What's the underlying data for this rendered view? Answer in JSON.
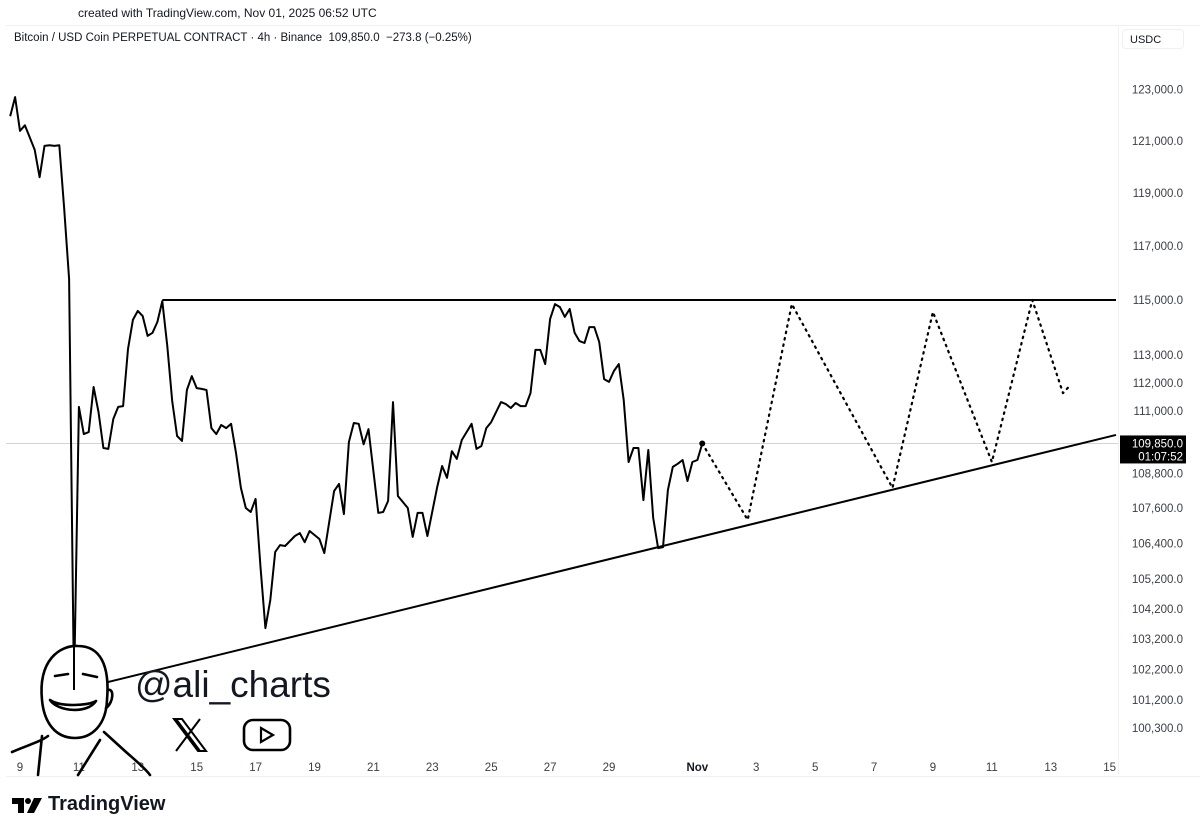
{
  "caption": "created with TradingView.com, Nov 01, 2025 06:52 UTC",
  "header": {
    "symbol": "Bitcoin / USD Coin PERPETUAL CONTRACT · 4h · Binance",
    "price": "109,850.0",
    "change": "−273.8 (−0.25%)"
  },
  "currency_label": "USDC",
  "last_price_label": {
    "price": "109,850.0",
    "countdown": "01:07:52"
  },
  "watermark": {
    "handle": "@ali_charts",
    "icons": [
      "x-logo-icon",
      "youtube-icon"
    ]
  },
  "brand": "TradingView",
  "colors": {
    "line": "#000000",
    "grid_line": "#d1d4dc",
    "label_bg": "#000000"
  },
  "chart_data": {
    "type": "line",
    "title": "",
    "y_scale": "log",
    "ylim": [
      99800,
      126000
    ],
    "grid": false,
    "y_ticks": [
      123000,
      121000,
      119000,
      117000,
      115000,
      113000,
      112000,
      111000,
      108800,
      107600,
      106400,
      105200,
      104200,
      103200,
      102200,
      101200,
      100300
    ],
    "y_tick_labels": [
      "123,000.0",
      "121,000.0",
      "119,000.0",
      "117,000.0",
      "115,000.0",
      "113,000.0",
      "112,000.0",
      "111,000.0",
      "108,800.0",
      "107,600.0",
      "106,400.0",
      "105,200.0",
      "104,200.0",
      "103,200.0",
      "102,200.0",
      "101,200.0",
      "100,300.0"
    ],
    "x_range": [
      "2025-10-08 14:00",
      "2025-11-15 06:00"
    ],
    "x_ticks": [
      {
        "date": "2025-10-09",
        "label": "9"
      },
      {
        "date": "2025-10-11",
        "label": "11"
      },
      {
        "date": "2025-10-13",
        "label": "13"
      },
      {
        "date": "2025-10-15",
        "label": "15"
      },
      {
        "date": "2025-10-17",
        "label": "17"
      },
      {
        "date": "2025-10-19",
        "label": "19"
      },
      {
        "date": "2025-10-21",
        "label": "21"
      },
      {
        "date": "2025-10-23",
        "label": "23"
      },
      {
        "date": "2025-10-25",
        "label": "25"
      },
      {
        "date": "2025-10-27",
        "label": "27"
      },
      {
        "date": "2025-10-29",
        "label": "29"
      },
      {
        "date": "2025-11-01",
        "label": "Nov",
        "bold": true
      },
      {
        "date": "2025-11-03",
        "label": "3"
      },
      {
        "date": "2025-11-05",
        "label": "5"
      },
      {
        "date": "2025-11-07",
        "label": "7"
      },
      {
        "date": "2025-11-09",
        "label": "9"
      },
      {
        "date": "2025-11-11",
        "label": "11"
      },
      {
        "date": "2025-11-13",
        "label": "13"
      },
      {
        "date": "2025-11-15",
        "label": "15"
      }
    ],
    "last_price": 109850,
    "series": [
      {
        "style": "solid",
        "points": [
          [
            "2025-10-08 16:00",
            121950
          ],
          [
            "2025-10-08 20:00",
            122700
          ],
          [
            "2025-10-09 00:00",
            121380
          ],
          [
            "2025-10-09 04:00",
            121600
          ],
          [
            "2025-10-09 12:00",
            120650
          ],
          [
            "2025-10-09 16:00",
            119600
          ],
          [
            "2025-10-09 20:00",
            120800
          ],
          [
            "2025-10-10 00:00",
            120830
          ],
          [
            "2025-10-10 04:00",
            120800
          ],
          [
            "2025-10-10 08:00",
            120830
          ],
          [
            "2025-10-10 12:00",
            118400
          ],
          [
            "2025-10-10 16:00",
            115770
          ],
          [
            "2025-10-10 20:00",
            101530
          ],
          [
            "2025-10-11 00:00",
            111140
          ],
          [
            "2025-10-11 04:00",
            110180
          ],
          [
            "2025-10-11 08:00",
            110250
          ],
          [
            "2025-10-11 12:00",
            111850
          ],
          [
            "2025-10-11 16:00",
            110960
          ],
          [
            "2025-10-11 20:00",
            109690
          ],
          [
            "2025-10-12 00:00",
            109660
          ],
          [
            "2025-10-12 04:00",
            110710
          ],
          [
            "2025-10-12 08:00",
            111140
          ],
          [
            "2025-10-12 12:00",
            111170
          ],
          [
            "2025-10-12 16:00",
            113210
          ],
          [
            "2025-10-12 20:00",
            114270
          ],
          [
            "2025-10-13 00:00",
            114600
          ],
          [
            "2025-10-13 04:00",
            114410
          ],
          [
            "2025-10-13 08:00",
            113690
          ],
          [
            "2025-10-13 12:00",
            113800
          ],
          [
            "2025-10-13 16:00",
            114200
          ],
          [
            "2025-10-13 20:00",
            114960
          ],
          [
            "2025-10-14 00:00",
            113320
          ],
          [
            "2025-10-14 04:00",
            111350
          ],
          [
            "2025-10-14 08:00",
            110110
          ],
          [
            "2025-10-14 12:00",
            109940
          ],
          [
            "2025-10-14 16:00",
            111740
          ],
          [
            "2025-10-14 20:00",
            112240
          ],
          [
            "2025-10-15 00:00",
            111810
          ],
          [
            "2025-10-15 04:00",
            111780
          ],
          [
            "2025-10-15 08:00",
            111740
          ],
          [
            "2025-10-15 12:00",
            110390
          ],
          [
            "2025-10-15 16:00",
            110180
          ],
          [
            "2025-10-15 20:00",
            110500
          ],
          [
            "2025-10-16 00:00",
            110390
          ],
          [
            "2025-10-16 04:00",
            110540
          ],
          [
            "2025-10-16 08:00",
            109520
          ],
          [
            "2025-10-16 12:00",
            108300
          ],
          [
            "2025-10-16 16:00",
            107610
          ],
          [
            "2025-10-16 20:00",
            107470
          ],
          [
            "2025-10-17 00:00",
            107920
          ],
          [
            "2025-10-17 04:00",
            105600
          ],
          [
            "2025-10-17 08:00",
            103560
          ],
          [
            "2025-10-17 12:00",
            104490
          ],
          [
            "2025-10-17 16:00",
            106110
          ],
          [
            "2025-10-17 20:00",
            106340
          ],
          [
            "2025-10-18 00:00",
            106310
          ],
          [
            "2025-10-18 04:00",
            106480
          ],
          [
            "2025-10-18 08:00",
            106650
          ],
          [
            "2025-10-18 12:00",
            106750
          ],
          [
            "2025-10-18 16:00",
            106440
          ],
          [
            "2025-10-18 20:00",
            106820
          ],
          [
            "2025-10-19 04:00",
            106550
          ],
          [
            "2025-10-19 08:00",
            106070
          ],
          [
            "2025-10-19 16:00",
            108190
          ],
          [
            "2025-10-19 20:00",
            108440
          ],
          [
            "2025-10-20 00:00",
            107400
          ],
          [
            "2025-10-20 04:00",
            109900
          ],
          [
            "2025-10-20 08:00",
            110570
          ],
          [
            "2025-10-20 12:00",
            110540
          ],
          [
            "2025-10-20 16:00",
            109820
          ],
          [
            "2025-10-20 20:00",
            110350
          ],
          [
            "2025-10-21 04:00",
            107440
          ],
          [
            "2025-10-21 08:00",
            107470
          ],
          [
            "2025-10-21 12:00",
            107850
          ],
          [
            "2025-10-21 16:00",
            111310
          ],
          [
            "2025-10-21 20:00",
            108020
          ],
          [
            "2025-10-22 04:00",
            107610
          ],
          [
            "2025-10-22 08:00",
            106620
          ],
          [
            "2025-10-22 12:00",
            107440
          ],
          [
            "2025-10-22 16:00",
            107440
          ],
          [
            "2025-10-22 20:00",
            106650
          ],
          [
            "2025-10-23 04:00",
            108330
          ],
          [
            "2025-10-23 08:00",
            109060
          ],
          [
            "2025-10-23 12:00",
            108650
          ],
          [
            "2025-10-23 16:00",
            109580
          ],
          [
            "2025-10-23 20:00",
            109310
          ],
          [
            "2025-10-24 00:00",
            109970
          ],
          [
            "2025-10-24 08:00",
            110540
          ],
          [
            "2025-10-24 12:00",
            109660
          ],
          [
            "2025-10-24 16:00",
            109760
          ],
          [
            "2025-10-24 20:00",
            110390
          ],
          [
            "2025-10-25 00:00",
            110600
          ],
          [
            "2025-10-25 08:00",
            111310
          ],
          [
            "2025-10-25 12:00",
            111240
          ],
          [
            "2025-10-25 16:00",
            111100
          ],
          [
            "2025-10-25 20:00",
            111280
          ],
          [
            "2025-10-26 00:00",
            111170
          ],
          [
            "2025-10-26 04:00",
            111170
          ],
          [
            "2025-10-26 08:00",
            111630
          ],
          [
            "2025-10-26 12:00",
            113180
          ],
          [
            "2025-10-26 16:00",
            113180
          ],
          [
            "2025-10-26 20:00",
            112670
          ],
          [
            "2025-10-27 00:00",
            114300
          ],
          [
            "2025-10-27 04:00",
            114850
          ],
          [
            "2025-10-27 08:00",
            114740
          ],
          [
            "2025-10-27 12:00",
            114380
          ],
          [
            "2025-10-27 16:00",
            114670
          ],
          [
            "2025-10-27 20:00",
            113800
          ],
          [
            "2025-10-28 00:00",
            113500
          ],
          [
            "2025-10-28 04:00",
            113430
          ],
          [
            "2025-10-28 08:00",
            114010
          ],
          [
            "2025-10-28 12:00",
            114010
          ],
          [
            "2025-10-28 16:00",
            113470
          ],
          [
            "2025-10-28 20:00",
            112130
          ],
          [
            "2025-10-29 00:00",
            112030
          ],
          [
            "2025-10-29 04:00",
            112420
          ],
          [
            "2025-10-29 08:00",
            112670
          ],
          [
            "2025-10-29 12:00",
            111390
          ],
          [
            "2025-10-29 16:00",
            109200
          ],
          [
            "2025-10-29 20:00",
            109690
          ],
          [
            "2025-10-30 00:00",
            109690
          ],
          [
            "2025-10-30 04:00",
            107880
          ],
          [
            "2025-10-30 08:00",
            109620
          ],
          [
            "2025-10-30 12:00",
            107270
          ],
          [
            "2025-10-30 16:00",
            106240
          ],
          [
            "2025-10-30 20:00",
            106270
          ],
          [
            "2025-10-31 00:00",
            108230
          ],
          [
            "2025-10-31 04:00",
            109030
          ],
          [
            "2025-10-31 08:00",
            109140
          ],
          [
            "2025-10-31 12:00",
            109270
          ],
          [
            "2025-10-31 16:00",
            108540
          ],
          [
            "2025-10-31 20:00",
            109200
          ],
          [
            "2025-11-01 00:00",
            109270
          ],
          [
            "2025-11-01 04:00",
            109850
          ]
        ]
      },
      {
        "style": "dotted",
        "points": [
          [
            "2025-11-01 04:00",
            109850
          ],
          [
            "2025-11-02 17:00",
            107200
          ],
          [
            "2025-11-04 05:00",
            114850
          ],
          [
            "2025-11-07 15:00",
            108300
          ],
          [
            "2025-11-09 00:00",
            114560
          ],
          [
            "2025-11-11 00:00",
            109200
          ],
          [
            "2025-11-12 09:00",
            115000
          ],
          [
            "2025-11-13 10:00",
            111630
          ],
          [
            "2025-11-13 16:00",
            111920
          ]
        ]
      }
    ],
    "trendlines": [
      {
        "name": "resistance",
        "from": [
          "2025-10-13 20:00",
          115000
        ],
        "to": [
          "2025-11-15 06:00",
          115000
        ]
      },
      {
        "name": "support",
        "from": [
          "2025-10-10 21:00",
          101530
        ],
        "to": [
          "2025-11-15 06:00",
          110150
        ]
      }
    ]
  }
}
